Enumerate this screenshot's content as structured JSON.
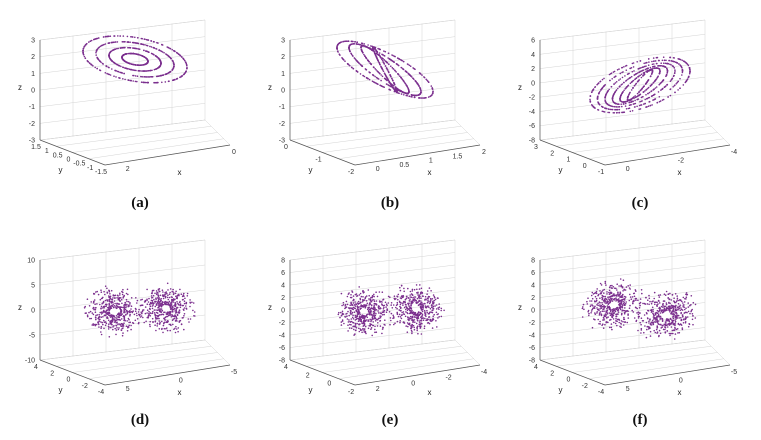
{
  "figure": {
    "point_color": "#7b2f8e",
    "panels": [
      {
        "caption": "(a)",
        "chart_data": {
          "type": "scatter",
          "xlabel": "x",
          "ylabel": "y",
          "zlabel": "z",
          "z_ticks": [
            "3",
            "2",
            "1",
            "0",
            "-1",
            "-2",
            "-3"
          ],
          "y_ticks": [
            "1.5",
            "1",
            "0.5",
            "0",
            "-0.5",
            "-1",
            "-1.5"
          ],
          "x_ticks": [
            "2",
            "0"
          ],
          "zlim": [
            -3,
            3
          ],
          "grid": true,
          "attractor": {
            "shape": "disk",
            "cx": 0.0,
            "cy": 0.0,
            "z": 0.5,
            "rx": 1.6,
            "ry": 0.8,
            "rings": 4,
            "tail": true
          }
        }
      },
      {
        "caption": "(b)",
        "chart_data": {
          "type": "scatter",
          "xlabel": "x",
          "ylabel": "y",
          "zlabel": "z",
          "z_ticks": [
            "3",
            "2",
            "1",
            "0",
            "-1",
            "-2",
            "-3"
          ],
          "y_ticks": [
            "0",
            "-1",
            "-2"
          ],
          "x_ticks": [
            "0",
            "0.5",
            "1",
            "1.5",
            "2"
          ],
          "zlim": [
            -3,
            3
          ],
          "grid": true,
          "attractor": {
            "shape": "twisted",
            "z": 0.6,
            "rx": 1.5,
            "ry": 0.6,
            "rings": 4
          }
        }
      },
      {
        "caption": "(c)",
        "chart_data": {
          "type": "scatter",
          "xlabel": "x",
          "ylabel": "y",
          "zlabel": "z",
          "z_ticks": [
            "6",
            "4",
            "2",
            "0",
            "-2",
            "-4",
            "-6",
            "-8"
          ],
          "y_ticks": [
            "3",
            "2",
            "1",
            "0",
            "-1"
          ],
          "x_ticks": [
            "0",
            "-2",
            "-4"
          ],
          "zlim": [
            -8,
            6
          ],
          "grid": true,
          "attractor": {
            "shape": "shell",
            "z": 0.0,
            "rx": 3.0,
            "ry": 2.0,
            "rings": 6
          }
        }
      },
      {
        "caption": "(d)",
        "chart_data": {
          "type": "scatter",
          "xlabel": "x",
          "ylabel": "y",
          "zlabel": "z",
          "z_ticks": [
            "10",
            "5",
            "0",
            "-5",
            "-10"
          ],
          "y_ticks": [
            "4",
            "2",
            "0",
            "-2",
            "-4"
          ],
          "x_ticks": [
            "5",
            "0",
            "-5"
          ],
          "zlim": [
            -10,
            10
          ],
          "grid": true,
          "attractor": {
            "shape": "double",
            "z": 0.0,
            "rx": 4.0,
            "ry": 3.5,
            "rings": 6
          }
        }
      },
      {
        "caption": "(e)",
        "chart_data": {
          "type": "scatter",
          "xlabel": "x",
          "ylabel": "y",
          "zlabel": "z",
          "z_ticks": [
            "8",
            "6",
            "4",
            "2",
            "0",
            "-2",
            "-4",
            "-6",
            "-8"
          ],
          "y_ticks": [
            "4",
            "2",
            "0",
            "-2"
          ],
          "x_ticks": [
            "2",
            "0",
            "-2",
            "-4"
          ],
          "zlim": [
            -8,
            8
          ],
          "grid": true,
          "attractor": {
            "shape": "double",
            "z": 0.0,
            "rx": 4.0,
            "ry": 3.0,
            "rings": 6
          }
        }
      },
      {
        "caption": "(f)",
        "chart_data": {
          "type": "scatter",
          "xlabel": "x",
          "ylabel": "y",
          "zlabel": "z",
          "z_ticks": [
            "8",
            "6",
            "4",
            "2",
            "0",
            "-2",
            "-4",
            "-6",
            "-8"
          ],
          "y_ticks": [
            "4",
            "2",
            "0",
            "-2",
            "-4"
          ],
          "x_ticks": [
            "5",
            "0",
            "-5"
          ],
          "zlim": [
            -8,
            8
          ],
          "grid": true,
          "attractor": {
            "shape": "double-tilted",
            "z": 0.0,
            "rx": 3.5,
            "ry": 3.5,
            "rings": 6
          }
        }
      }
    ]
  }
}
